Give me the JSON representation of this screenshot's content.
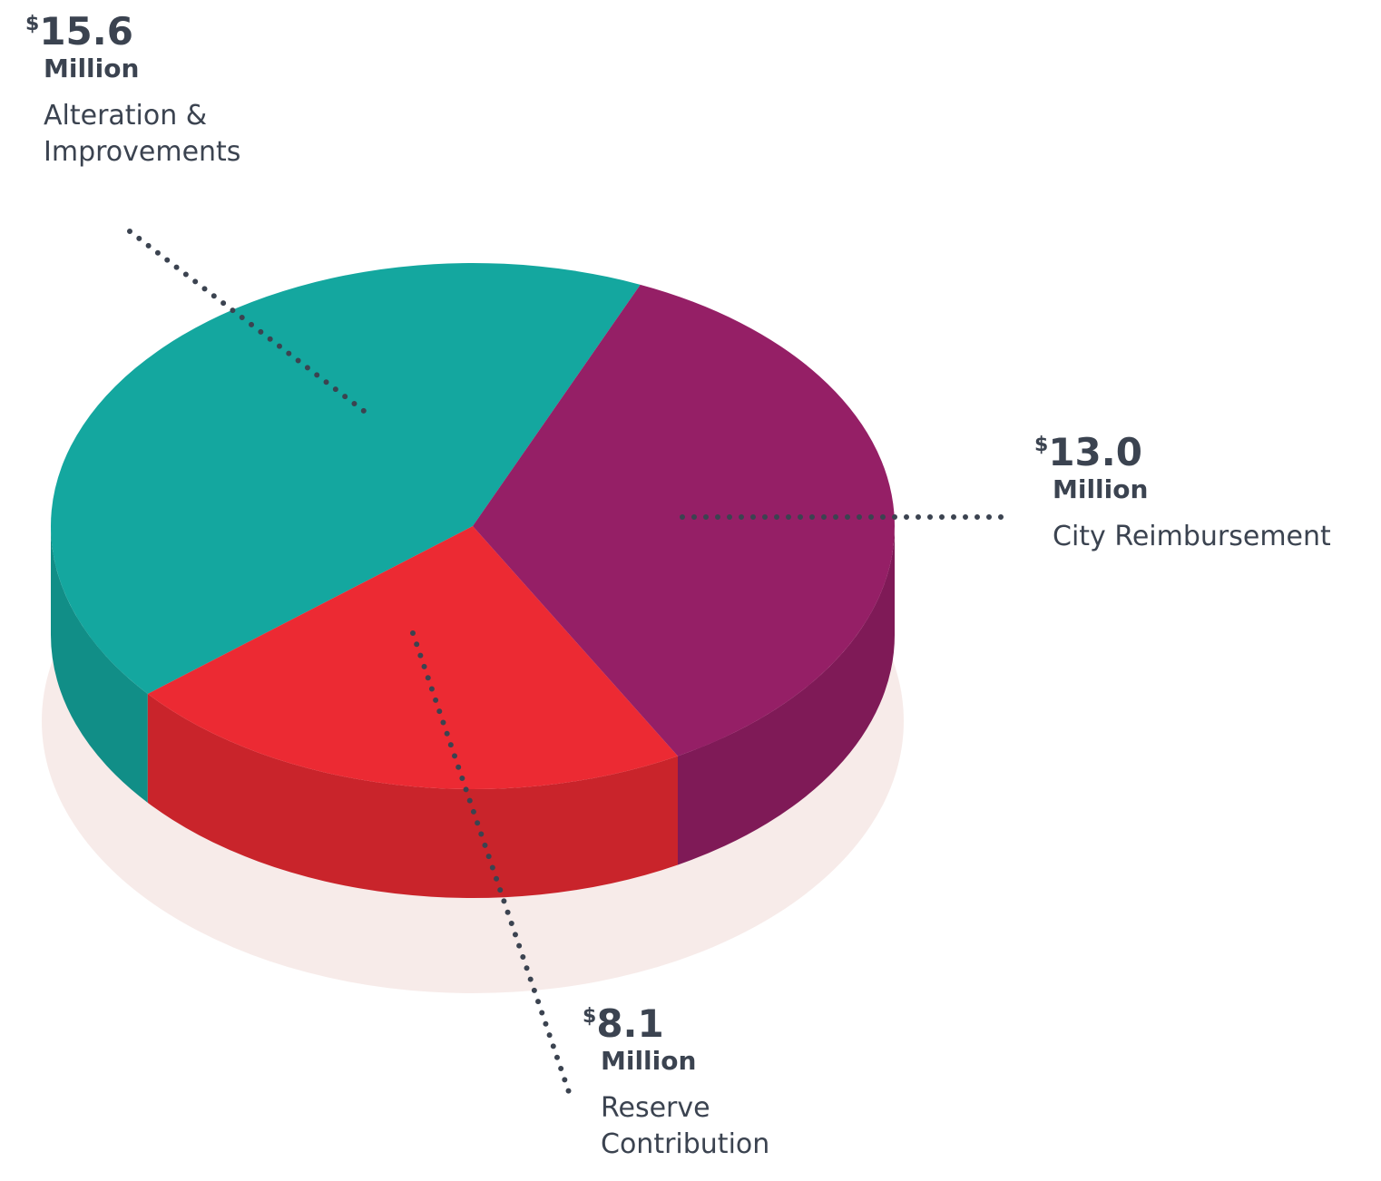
{
  "chart_data": {
    "type": "pie3d",
    "categories": [
      "Alteration & Improvements",
      "Reserve Contribution",
      "City Reimbursement"
    ],
    "values": [
      15.6,
      8.1,
      13.0
    ],
    "value_labels": [
      "15.6",
      "8.1",
      "13.0"
    ],
    "value_prefix": "$",
    "value_suffix": "Million",
    "colors": [
      "#14a79f",
      "#ec2a33",
      "#951f66"
    ]
  }
}
